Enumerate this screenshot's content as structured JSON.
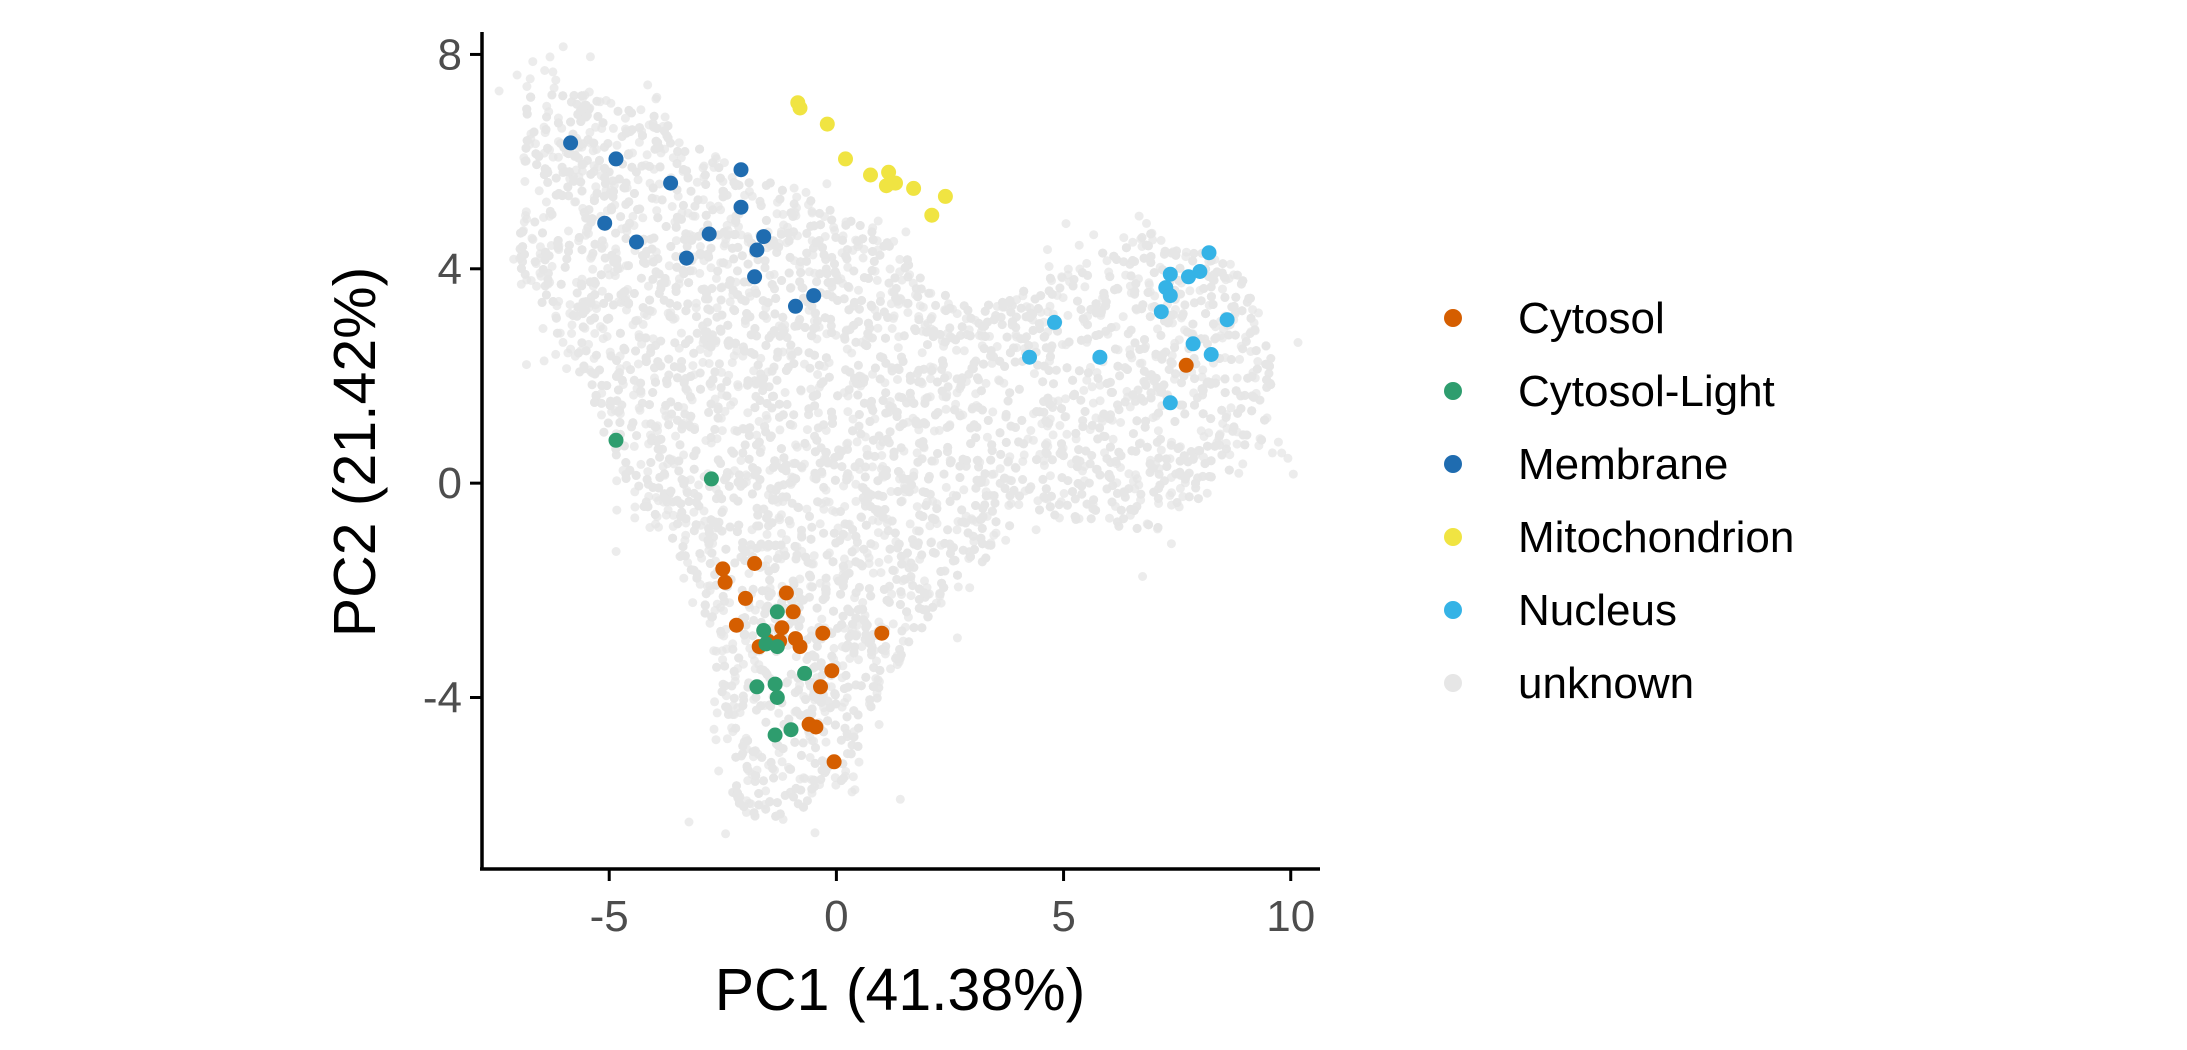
{
  "chart_data": {
    "type": "scatter",
    "xlabel": "PC1 (41.38%)",
    "ylabel": "PC2 (21.42%)",
    "xlim": [
      -7.8,
      10.6
    ],
    "ylim": [
      -7.2,
      8.4
    ],
    "xticks": [
      -5,
      0,
      5,
      10
    ],
    "xtick_labels": [
      "-5",
      "0",
      "5",
      "10"
    ],
    "yticks": [
      8,
      4,
      0,
      -4
    ],
    "ytick_labels": [
      "8",
      "4",
      "0",
      "-4"
    ],
    "grid": false,
    "legend_position": "right",
    "series": [
      {
        "name": "unknown",
        "color": "#e6e6e6",
        "note_points": "dense background cloud (several thousand points), generated procedurally within the outline below",
        "outline": [
          [
            -6.8,
            7.6
          ],
          [
            -4.0,
            6.9
          ],
          [
            -2.5,
            6.0
          ],
          [
            -0.8,
            5.4
          ],
          [
            1.0,
            4.6
          ],
          [
            3.0,
            3.2
          ],
          [
            5.0,
            4.0
          ],
          [
            7.0,
            4.7
          ],
          [
            8.8,
            4.0
          ],
          [
            9.7,
            2.7
          ],
          [
            9.4,
            0.5
          ],
          [
            7.0,
            -0.9
          ],
          [
            4.5,
            -0.6
          ],
          [
            2.5,
            -2.0
          ],
          [
            1.0,
            -3.8
          ],
          [
            0.2,
            -5.5
          ],
          [
            -1.0,
            -6.3
          ],
          [
            -2.5,
            -6.2
          ],
          [
            -2.4,
            -4.5
          ],
          [
            -3.0,
            -2.0
          ],
          [
            -4.5,
            -0.3
          ],
          [
            -6.0,
            2.5
          ],
          [
            -7.0,
            4.0
          ],
          [
            -6.8,
            7.6
          ]
        ]
      },
      {
        "name": "Cytosol",
        "color": "#d55e00",
        "points": [
          [
            -2.5,
            -1.6
          ],
          [
            -2.45,
            -1.85
          ],
          [
            -1.8,
            -1.5
          ],
          [
            -2.0,
            -2.15
          ],
          [
            -1.1,
            -2.05
          ],
          [
            -2.2,
            -2.65
          ],
          [
            -0.95,
            -2.4
          ],
          [
            -1.2,
            -2.7
          ],
          [
            -0.3,
            -2.8
          ],
          [
            -1.7,
            -3.05
          ],
          [
            -1.25,
            -2.95
          ],
          [
            -0.9,
            -2.9
          ],
          [
            -0.8,
            -3.05
          ],
          [
            -1.5,
            -2.95
          ],
          [
            1.0,
            -2.8
          ],
          [
            -0.1,
            -3.5
          ],
          [
            -0.35,
            -3.8
          ],
          [
            -0.6,
            -4.5
          ],
          [
            -0.45,
            -4.55
          ],
          [
            -0.05,
            -5.2
          ],
          [
            7.7,
            2.2
          ]
        ]
      },
      {
        "name": "Cytosol-Light",
        "color": "#2e9d6e",
        "points": [
          [
            -4.85,
            0.8
          ],
          [
            -2.75,
            0.08
          ],
          [
            -1.3,
            -2.4
          ],
          [
            -1.6,
            -2.75
          ],
          [
            -1.55,
            -3.0
          ],
          [
            -1.3,
            -3.05
          ],
          [
            -1.35,
            -3.75
          ],
          [
            -1.75,
            -3.8
          ],
          [
            -0.7,
            -3.55
          ],
          [
            -1.3,
            -4.0
          ],
          [
            -1.35,
            -4.7
          ],
          [
            -1.0,
            -4.6
          ]
        ]
      },
      {
        "name": "Membrane",
        "color": "#1f6cb0",
        "points": [
          [
            -5.85,
            6.35
          ],
          [
            -4.85,
            6.05
          ],
          [
            -3.65,
            5.6
          ],
          [
            -2.1,
            5.85
          ],
          [
            -5.1,
            4.85
          ],
          [
            -4.4,
            4.5
          ],
          [
            -2.8,
            4.65
          ],
          [
            -2.1,
            5.15
          ],
          [
            -1.6,
            4.6
          ],
          [
            -1.75,
            4.35
          ],
          [
            -3.3,
            4.2
          ],
          [
            -1.8,
            3.85
          ],
          [
            -0.5,
            3.5
          ],
          [
            -0.9,
            3.3
          ]
        ]
      },
      {
        "name": "Mitochondrion",
        "color": "#f0e442",
        "points": [
          [
            -0.85,
            7.1
          ],
          [
            -0.8,
            7.0
          ],
          [
            -0.2,
            6.7
          ],
          [
            0.2,
            6.05
          ],
          [
            0.75,
            5.75
          ],
          [
            1.15,
            5.8
          ],
          [
            1.3,
            5.6
          ],
          [
            1.1,
            5.55
          ],
          [
            1.7,
            5.5
          ],
          [
            2.4,
            5.35
          ],
          [
            2.1,
            5.0
          ]
        ]
      },
      {
        "name": "Nucleus",
        "color": "#35b3e6",
        "points": [
          [
            8.2,
            4.3
          ],
          [
            7.35,
            3.9
          ],
          [
            7.75,
            3.85
          ],
          [
            8.0,
            3.95
          ],
          [
            7.25,
            3.65
          ],
          [
            7.35,
            3.5
          ],
          [
            7.15,
            3.2
          ],
          [
            8.6,
            3.05
          ],
          [
            4.8,
            3.0
          ],
          [
            7.85,
            2.6
          ],
          [
            8.25,
            2.4
          ],
          [
            4.25,
            2.35
          ],
          [
            5.8,
            2.35
          ],
          [
            7.35,
            1.5
          ]
        ]
      }
    ]
  }
}
